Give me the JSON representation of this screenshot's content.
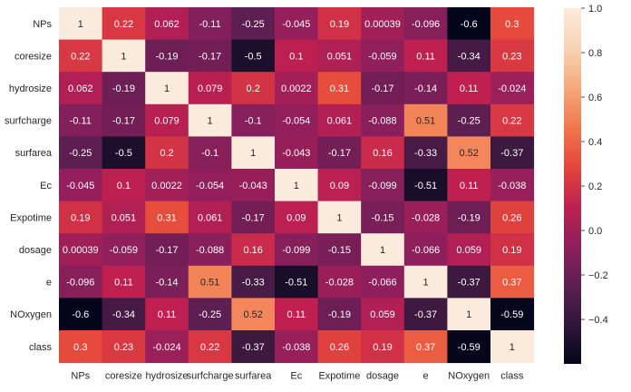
{
  "chart_data": {
    "type": "heatmap",
    "title": "",
    "xlabel": "",
    "ylabel": "",
    "row_labels": [
      "NPs",
      "coresize",
      "hydrosize",
      "surfcharge",
      "surfarea",
      "Ec",
      "Expotime",
      "dosage",
      "e",
      "NOxygen",
      "class"
    ],
    "col_labels": [
      "NPs",
      "coresize",
      "hydrosize",
      "surfcharge",
      "surfarea",
      "Ec",
      "Expotime",
      "dosage",
      "e",
      "NOxygen",
      "class"
    ],
    "values": [
      [
        1,
        0.22,
        0.062,
        -0.11,
        -0.25,
        -0.045,
        0.19,
        0.00039,
        -0.096,
        -0.6,
        0.3
      ],
      [
        0.22,
        1,
        -0.19,
        -0.17,
        -0.5,
        0.1,
        0.051,
        -0.059,
        0.11,
        -0.34,
        0.23
      ],
      [
        0.062,
        -0.19,
        1,
        0.079,
        0.2,
        0.0022,
        0.31,
        -0.17,
        -0.14,
        0.11,
        -0.024
      ],
      [
        -0.11,
        -0.17,
        0.079,
        1,
        -0.1,
        -0.054,
        0.061,
        -0.088,
        0.51,
        -0.25,
        0.22
      ],
      [
        -0.25,
        -0.5,
        0.2,
        -0.1,
        1,
        -0.043,
        -0.17,
        0.16,
        -0.33,
        0.52,
        -0.37
      ],
      [
        -0.045,
        0.1,
        0.0022,
        -0.054,
        -0.043,
        1,
        0.09,
        -0.099,
        -0.51,
        0.11,
        -0.038
      ],
      [
        0.19,
        0.051,
        0.31,
        0.061,
        -0.17,
        0.09,
        1,
        -0.15,
        -0.028,
        -0.19,
        0.26
      ],
      [
        0.00039,
        -0.059,
        -0.17,
        -0.088,
        0.16,
        -0.099,
        -0.15,
        1,
        -0.066,
        0.059,
        0.19
      ],
      [
        -0.096,
        0.11,
        -0.14,
        0.51,
        -0.33,
        -0.51,
        -0.028,
        -0.066,
        1,
        -0.37,
        0.37
      ],
      [
        -0.6,
        -0.34,
        0.11,
        -0.25,
        0.52,
        0.11,
        -0.19,
        0.059,
        -0.37,
        1,
        -0.59
      ],
      [
        0.3,
        0.23,
        -0.024,
        0.22,
        -0.37,
        -0.038,
        0.26,
        0.19,
        0.37,
        -0.59,
        1
      ]
    ],
    "colorbar": {
      "vmin": -0.6,
      "vmax": 1.0,
      "ticks": [
        1.0,
        0.8,
        0.6,
        0.4,
        0.2,
        0.0,
        -0.2,
        -0.4
      ],
      "tick_labels": [
        "1.0",
        "0.8",
        "0.6",
        "0.4",
        "0.2",
        "0.0",
        "−0.2",
        "−0.4"
      ],
      "colormap": "rocket",
      "colors": [
        "#03051a",
        "#2f1739",
        "#5e1f52",
        "#8f1f5c",
        "#c0204f",
        "#e5473b",
        "#f2784d",
        "#f6a97a",
        "#f8d3b4",
        "#faebdd"
      ]
    }
  }
}
